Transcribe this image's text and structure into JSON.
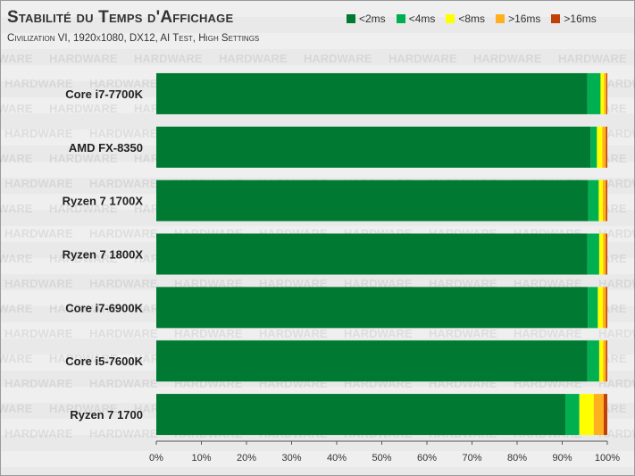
{
  "chart_data": {
    "type": "bar",
    "orientation": "horizontal",
    "stacked": true,
    "title": "Stabilité du Temps d'Affichage",
    "subtitle": "Civilization VI, 1920x1080, DX12, AI Test, High Settings",
    "categories": [
      "Core i7-7700K",
      "AMD FX-8350",
      "Ryzen 7 1700X",
      "Ryzen 7 1800X",
      "Core i7-6900K",
      "Core i5-7600K",
      "Ryzen 7 1700"
    ],
    "series": [
      {
        "name": "<2ms",
        "color": "#007a33",
        "values": [
          95.6,
          96.3,
          95.8,
          95.6,
          95.7,
          95.6,
          90.7
        ]
      },
      {
        "name": "<4ms",
        "color": "#00b050",
        "values": [
          2.9,
          1.4,
          2.3,
          2.6,
          2.2,
          2.6,
          3.1
        ]
      },
      {
        "name": "<8ms",
        "color": "#ffff00",
        "values": [
          0.8,
          1.2,
          0.9,
          0.9,
          1.1,
          0.9,
          3.2
        ]
      },
      {
        "name": ">16ms",
        "color": "#ffb020",
        "values": [
          0.5,
          0.8,
          0.7,
          0.6,
          0.7,
          0.6,
          2.2
        ]
      },
      {
        "name": ">16ms",
        "color": "#c0400a",
        "values": [
          0.2,
          0.3,
          0.3,
          0.3,
          0.3,
          0.3,
          0.8
        ]
      }
    ],
    "xlim": [
      0,
      100
    ],
    "x_ticks": [
      "0%",
      "10%",
      "20%",
      "30%",
      "40%",
      "50%",
      "60%",
      "70%",
      "80%",
      "90%",
      "100%"
    ],
    "legend_position": "top-right",
    "watermark": "HARDWARE"
  }
}
